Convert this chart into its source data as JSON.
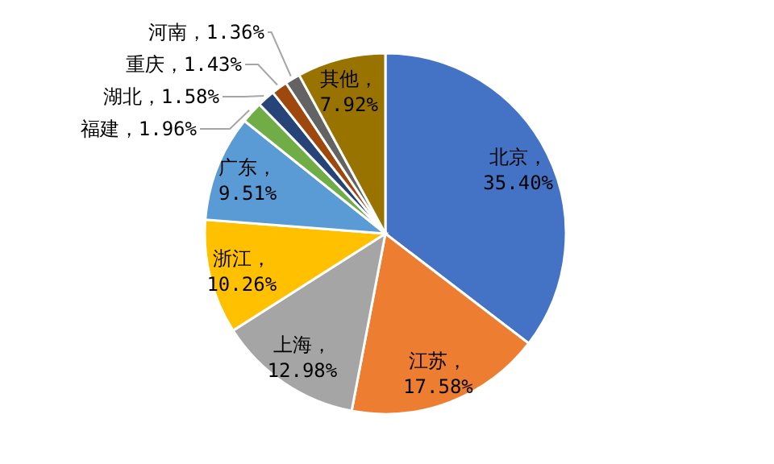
{
  "chart_data": {
    "type": "pie",
    "categories": [
      "北京",
      "江苏",
      "上海",
      "浙江",
      "广东",
      "福建",
      "湖北",
      "重庆",
      "河南",
      "其他"
    ],
    "values": [
      35.4,
      17.58,
      12.98,
      10.26,
      9.51,
      1.96,
      1.58,
      1.43,
      1.36,
      7.92
    ],
    "value_labels": [
      "，35.40%",
      "，17.58%",
      "，12.98%",
      "，10.26%",
      "，9.51%",
      "，1.96%",
      "，1.58%",
      "，1.43%",
      "，1.36%",
      "，7.92%"
    ],
    "colors": [
      "#4472c4",
      "#ed7d31",
      "#a5a5a5",
      "#ffc000",
      "#5b9bd5",
      "#70ad47",
      "#264478",
      "#9e480e",
      "#636363",
      "#997300"
    ],
    "legend": false
  }
}
